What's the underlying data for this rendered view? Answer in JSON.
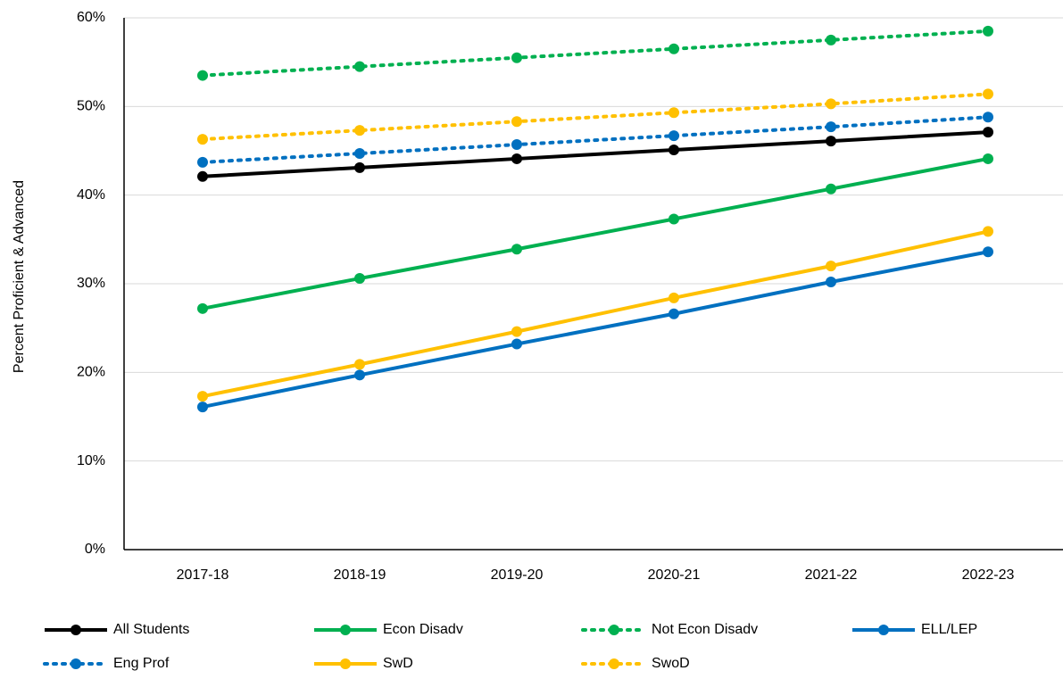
{
  "chart_data": {
    "type": "line",
    "y_label": "Percent Proficient & Advanced",
    "categories": [
      "2017-18",
      "2018-19",
      "2019-20",
      "2020-21",
      "2021-22",
      "2022-23"
    ],
    "ylim": [
      0,
      60
    ],
    "yticks": [
      {
        "value": 0,
        "label": "0%"
      },
      {
        "value": 10,
        "label": "10%"
      },
      {
        "value": 20,
        "label": "20%"
      },
      {
        "value": 30,
        "label": "30%"
      },
      {
        "value": 40,
        "label": "40%"
      },
      {
        "value": 50,
        "label": "50%"
      },
      {
        "value": 60,
        "label": "60%"
      }
    ],
    "grid": true,
    "legend": "bottom",
    "series": [
      {
        "name": "All Students",
        "color": "#000000",
        "line_style": "solid",
        "values": [
          42.1,
          43.1,
          44.1,
          45.1,
          46.1,
          47.1
        ]
      },
      {
        "name": "Econ Disadv",
        "color": "#00b050",
        "line_style": "solid",
        "values": [
          27.2,
          30.6,
          33.9,
          37.3,
          40.7,
          44.1
        ]
      },
      {
        "name": "Not Econ Disadv",
        "color": "#00b050",
        "line_style": "dotted",
        "values": [
          53.5,
          54.5,
          55.5,
          56.5,
          57.5,
          58.5
        ]
      },
      {
        "name": "ELL/LEP",
        "color": "#0070c0",
        "line_style": "solid",
        "values": [
          16.1,
          19.7,
          23.2,
          26.6,
          30.2,
          33.6
        ]
      },
      {
        "name": "Eng Prof",
        "color": "#0070c0",
        "line_style": "dotted",
        "values": [
          43.7,
          44.7,
          45.7,
          46.7,
          47.7,
          48.8
        ]
      },
      {
        "name": "SwD",
        "color": "#ffc000",
        "line_style": "solid",
        "values": [
          17.3,
          20.9,
          24.6,
          28.4,
          32.0,
          35.9
        ]
      },
      {
        "name": "SwoD",
        "color": "#ffc000",
        "line_style": "dotted",
        "values": [
          46.3,
          47.3,
          48.3,
          49.3,
          50.3,
          51.4
        ]
      }
    ]
  }
}
